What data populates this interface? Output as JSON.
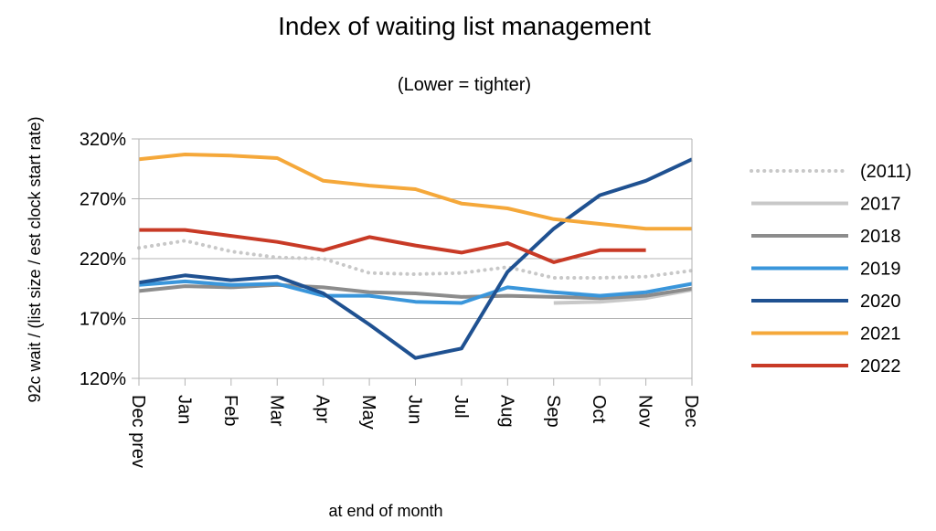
{
  "chart_data": {
    "type": "line",
    "title": "Index of waiting list management",
    "subtitle": "(Lower  =  tighter)",
    "xlabel": "at end of month",
    "ylabel": "92c wait / (list size / est clock start rate)",
    "categories": [
      "Dec prev",
      "Jan",
      "Feb",
      "Mar",
      "Apr",
      "May",
      "Jun",
      "Jul",
      "Aug",
      "Sep",
      "Oct",
      "Nov",
      "Dec"
    ],
    "ylim": [
      1.2,
      3.2
    ],
    "yticks": [
      1.2,
      1.7,
      2.2,
      2.7,
      3.2
    ],
    "ytick_labels": [
      "120%",
      "170%",
      "220%",
      "270%",
      "320%"
    ],
    "grid": "horizontal",
    "legend_position": "right",
    "series": [
      {
        "name": "(2011)",
        "color": "#c8c8c8",
        "style": "dotted",
        "values": [
          2.29,
          2.35,
          2.26,
          2.21,
          2.2,
          2.08,
          2.07,
          2.08,
          2.13,
          2.04,
          2.04,
          2.05,
          2.1
        ]
      },
      {
        "name": "2017",
        "color": "#c8c8c8",
        "style": "solid",
        "values": [
          null,
          null,
          null,
          null,
          null,
          null,
          null,
          null,
          null,
          1.83,
          1.84,
          1.87,
          1.94
        ]
      },
      {
        "name": "2018",
        "color": "#8c8c8c",
        "style": "solid",
        "values": [
          1.93,
          1.97,
          1.96,
          1.98,
          1.96,
          1.92,
          1.91,
          1.88,
          1.89,
          1.88,
          1.87,
          1.89,
          1.95
        ]
      },
      {
        "name": "2019",
        "color": "#3a96db",
        "style": "solid",
        "values": [
          1.98,
          2.01,
          1.98,
          1.99,
          1.89,
          1.89,
          1.84,
          1.83,
          1.96,
          1.92,
          1.89,
          1.92,
          1.99
        ]
      },
      {
        "name": "2020",
        "color": "#1f5191",
        "style": "solid",
        "values": [
          2.0,
          2.06,
          2.02,
          2.05,
          1.91,
          1.65,
          1.37,
          1.45,
          2.09,
          2.45,
          2.73,
          2.85,
          3.03
        ]
      },
      {
        "name": "2021",
        "color": "#f5a83a",
        "style": "solid",
        "values": [
          3.03,
          3.07,
          3.06,
          3.04,
          2.85,
          2.81,
          2.78,
          2.66,
          2.62,
          2.53,
          2.49,
          2.45,
          2.45
        ]
      },
      {
        "name": "2022",
        "color": "#c83a26",
        "style": "solid",
        "values": [
          2.44,
          2.44,
          2.39,
          2.34,
          2.27,
          2.38,
          2.31,
          2.25,
          2.33,
          2.17,
          2.27,
          2.27,
          null
        ]
      }
    ]
  }
}
